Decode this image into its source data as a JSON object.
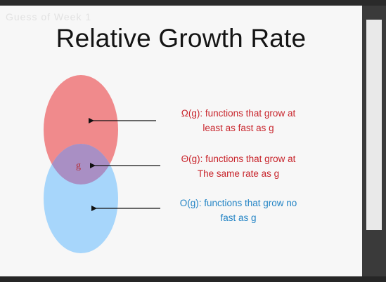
{
  "watermark": "Guess of Week 1",
  "slide": {
    "title": "Relative Growth Rate",
    "center_label": "g",
    "labels": {
      "omega": {
        "line1": "Ω(g): functions that grow at",
        "line2": "least as fast as g"
      },
      "theta": {
        "line1": "Θ(g): functions that grow at",
        "line2": "The same rate as g"
      },
      "bigo": {
        "line1": "O(g): functions that grow no",
        "line2": "fast as g"
      }
    }
  },
  "colors": {
    "omega_ellipse": "#f08a8c",
    "bigo_ellipse": "#a7d6fb",
    "overlap": "#a98fc4",
    "omega_text": "#c8242b",
    "bigo_text": "#2384c5"
  }
}
